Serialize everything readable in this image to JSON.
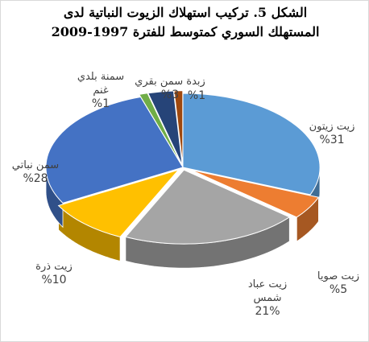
{
  "chart_data": {
    "type": "pie",
    "style": "3d-exploded",
    "title_lines": [
      "الشكل 5. تركيب استهلاك الزيوت النباتية لدى",
      "المستهلك السوري كمتوسط للفترة 1997-2009"
    ],
    "slices": [
      {
        "name": "زيت زيتون",
        "name_lines": [
          "زيت زيتون"
        ],
        "label": "%31",
        "value": 31,
        "color": "#5b9bd5"
      },
      {
        "name": "زيت صويا",
        "name_lines": [
          "زيت صويا"
        ],
        "label": "%5",
        "value": 5,
        "color": "#ed7d31"
      },
      {
        "name": "زيت عباد شمس",
        "name_lines": [
          "زيت عباد",
          "شمس"
        ],
        "label": "21%",
        "value": 21,
        "color": "#a5a5a5"
      },
      {
        "name": "زيت ذرة",
        "name_lines": [
          "زيت ذرة"
        ],
        "label": "%10",
        "value": 10,
        "color": "#ffc000"
      },
      {
        "name": "سمن نباتي",
        "name_lines": [
          "سمن نباتي"
        ],
        "label": "%28",
        "value": 28,
        "color": "#4472c4"
      },
      {
        "name": "سمنة بلدي غنم",
        "name_lines": [
          "سمنة بلدي",
          "غنم"
        ],
        "label": "%1",
        "value": 1,
        "color": "#70ad47"
      },
      {
        "name": "زبدة سمن بقري",
        "name_lines": [
          "زبدة سمن بقري"
        ],
        "label": "%3",
        "value": 3,
        "color": "#264478"
      },
      {
        "name": "",
        "name_lines": [],
        "label": "%1",
        "value": 1,
        "color": "#9e480e"
      }
    ]
  }
}
